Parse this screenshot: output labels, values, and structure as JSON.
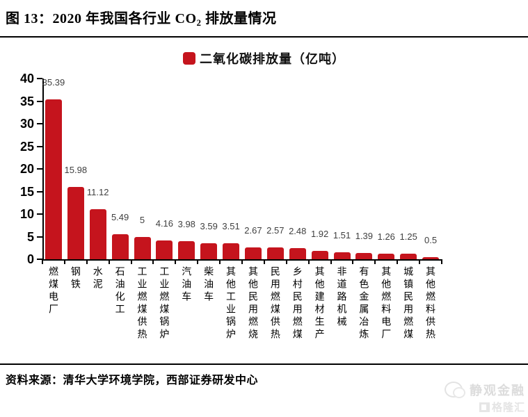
{
  "title": {
    "prefix": "图 13：2020 年我国各行业 CO",
    "subscript": "2",
    "suffix": " 排放量情况"
  },
  "legend": {
    "label": "二氧化碳排放量（亿吨）",
    "swatch_color": "#C5141D"
  },
  "chart_data": {
    "type": "bar",
    "title": "2020 年我国各行业 CO2 排放量情况",
    "legend": "二氧化碳排放量（亿吨）",
    "categories": [
      "燃煤电厂",
      "钢铁",
      "水泥",
      "石油化工",
      "工业燃煤供热",
      "工业燃煤锅炉",
      "汽油车",
      "柴油车",
      "其他工业锅炉",
      "其他民用燃烧",
      "民用燃煤供热",
      "乡村民用燃煤",
      "其他建材生产",
      "非道路机械",
      "有色金属冶炼",
      "其他燃料电厂",
      "城镇民用燃煤",
      "其他燃料供热"
    ],
    "values": [
      35.39,
      15.98,
      11.12,
      5.49,
      5,
      4.16,
      3.98,
      3.59,
      3.51,
      2.67,
      2.57,
      2.48,
      1.92,
      1.51,
      1.39,
      1.26,
      1.25,
      0.5
    ],
    "value_labels": [
      "35.39",
      "15.98",
      "11.12",
      "5.49",
      "5",
      "4.16",
      "3.98",
      "3.59",
      "3.51",
      "2.67",
      "2.57",
      "2.48",
      "1.92",
      "1.51",
      "1.39",
      "1.26",
      "1.25",
      "0.5"
    ],
    "xlabel": "",
    "ylabel": "",
    "ylim": [
      0,
      40
    ],
    "ytick_step": 5,
    "yticks": [
      0,
      5,
      10,
      15,
      20,
      25,
      30,
      35,
      40
    ],
    "grid": false,
    "legend_position": "top-center",
    "bar_color": "#C5141D",
    "value_label_color": "#3f3f3f"
  },
  "footer": {
    "source": "资料来源：清华大学环境学院，西部证券研发中心"
  },
  "watermark": {
    "name": "静观金融",
    "logo": "格隆汇"
  }
}
